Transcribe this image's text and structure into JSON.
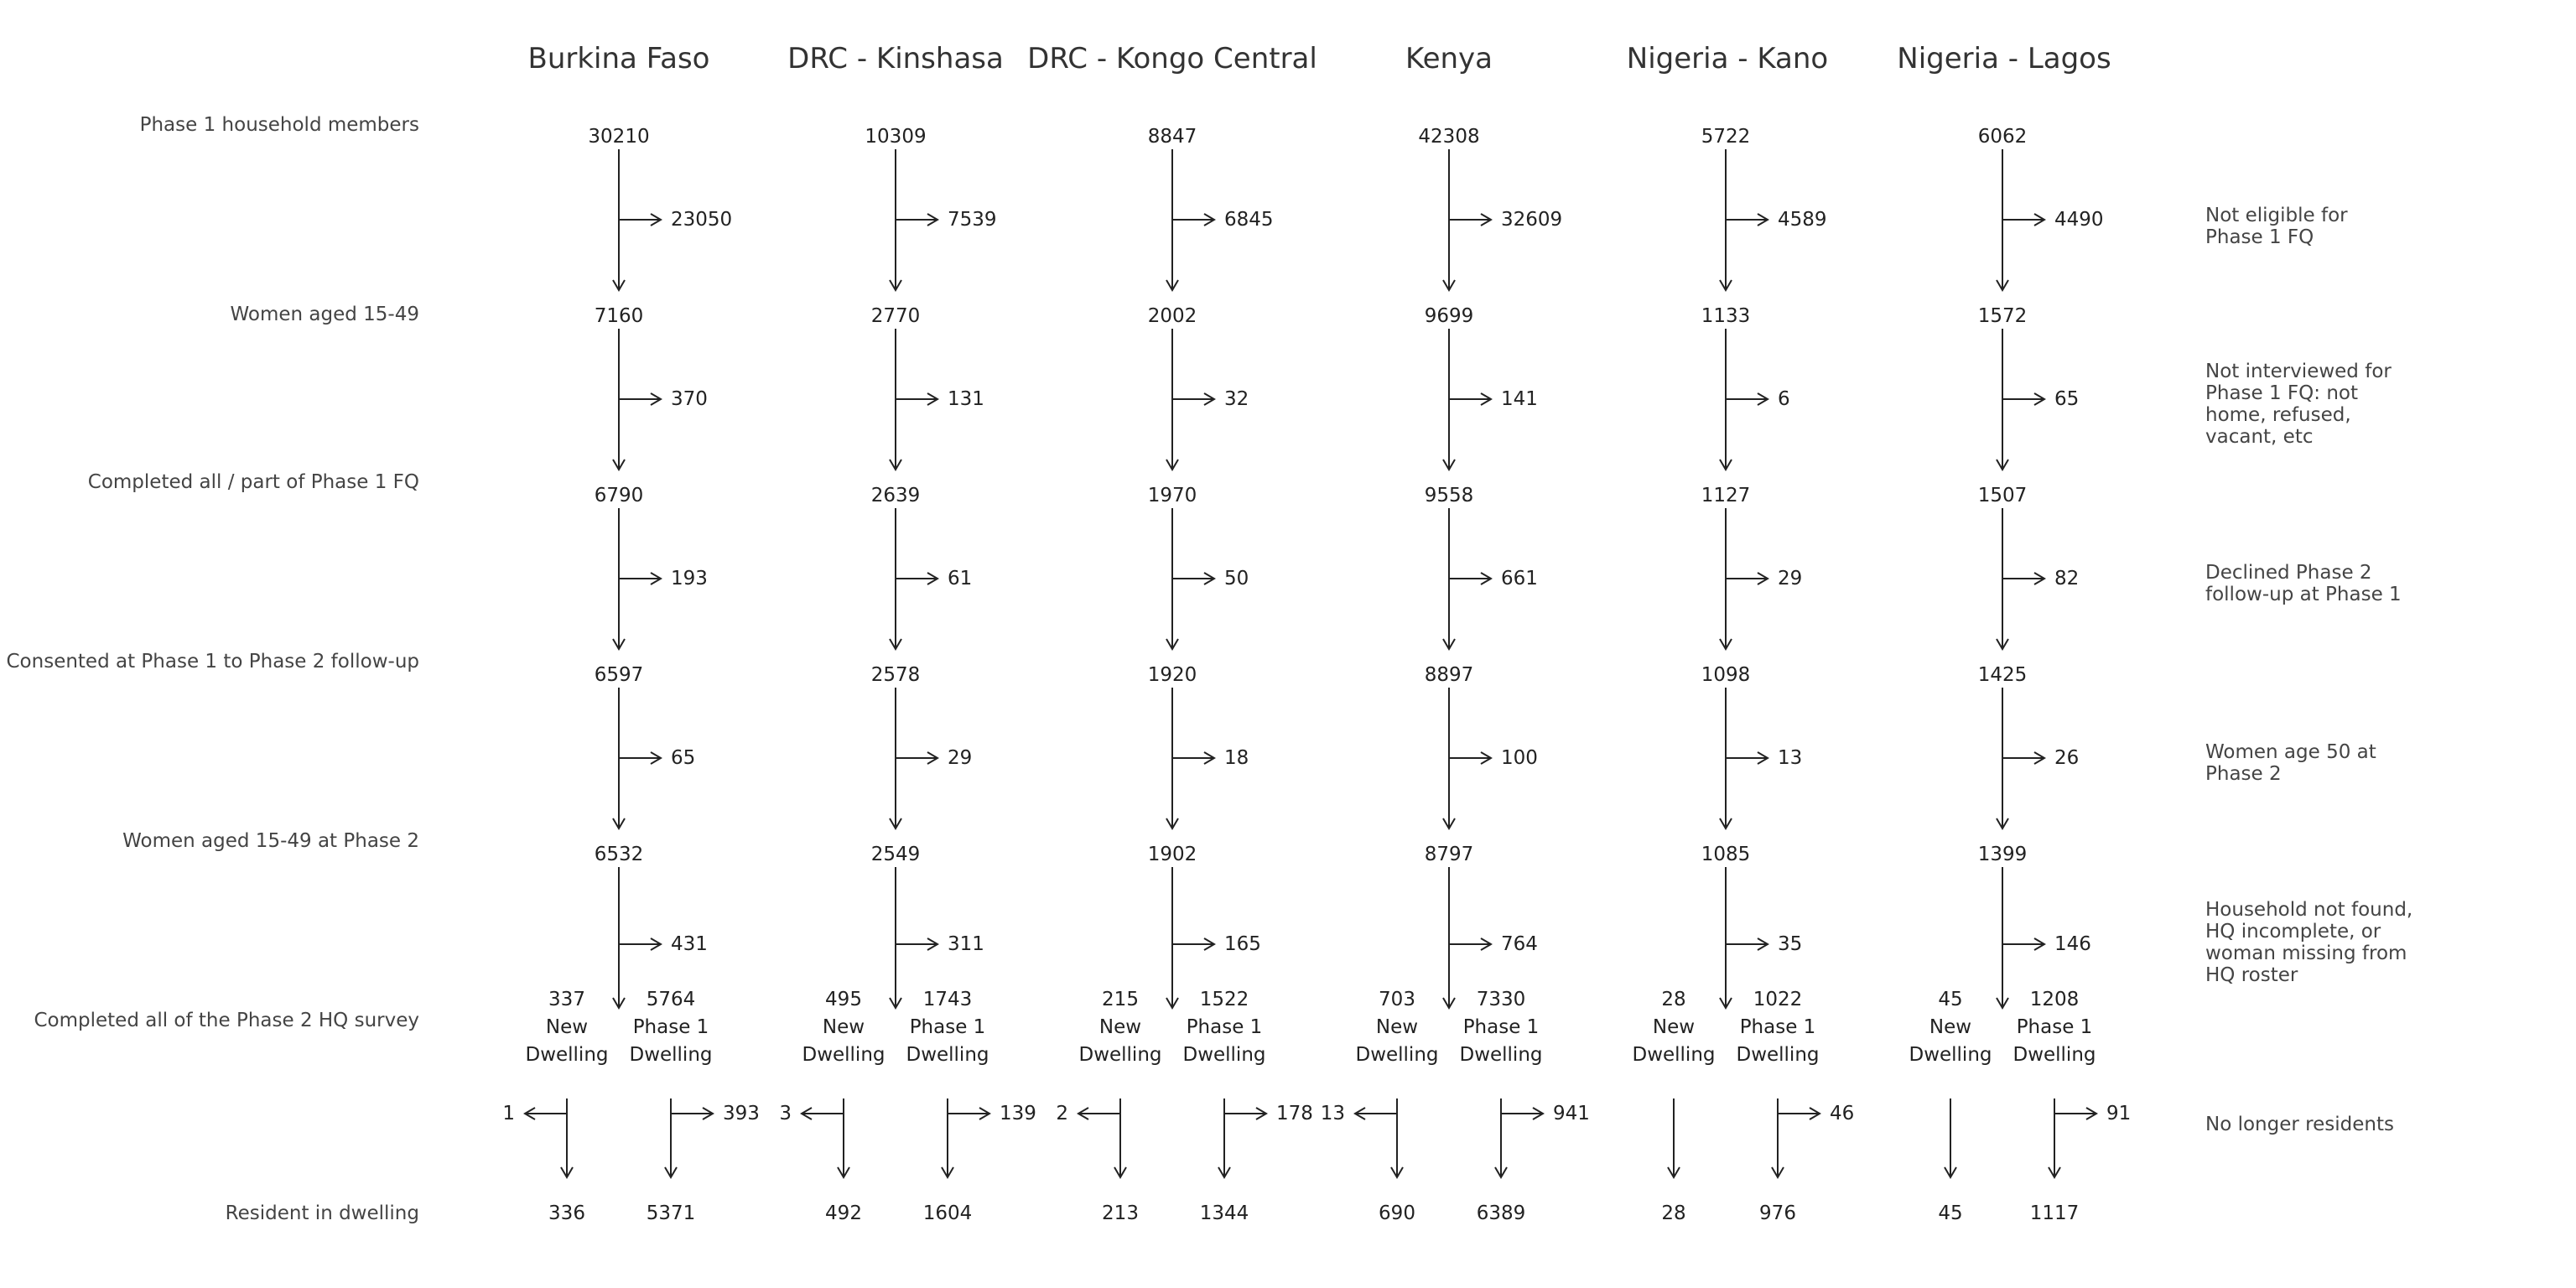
{
  "countries": [
    "Burkina Faso",
    "DRC - Kinshasa",
    "DRC - Kongo Central",
    "Kenya",
    "Nigeria - Kano",
    "Nigeria - Lagos"
  ],
  "stage_labels": [
    "Phase 1 household members",
    "Women aged 15-49",
    "Completed all / part of Phase 1 FQ",
    "Consented at Phase 1 to Phase 2 follow-up",
    "Women aged 15-49 at Phase 2",
    "Completed all of the Phase 2 HQ survey",
    "Resident in dwelling"
  ],
  "exit_labels": [
    "Not eligible for Phase 1 FQ",
    "Not interviewed for Phase 1 FQ: not home, refused, vacant, etc",
    "Declined Phase 2 follow-up at Phase 1",
    "Women age 50 at Phase 2",
    "Household not found, HQ incomplete, or woman missing from HQ roster",
    "No longer residents"
  ],
  "stage_values": [
    [
      "30210",
      "10309",
      "8847",
      "42308",
      "5722",
      "6062"
    ],
    [
      "7160",
      "2770",
      "2002",
      "9699",
      "1133",
      "1572"
    ],
    [
      "6790",
      "2639",
      "1970",
      "9558",
      "1127",
      "1507"
    ],
    [
      "6597",
      "2578",
      "1920",
      "8897",
      "1098",
      "1425"
    ],
    [
      "6532",
      "2549",
      "1902",
      "8797",
      "1085",
      "1399"
    ]
  ],
  "exit_values": [
    [
      "23050",
      "7539",
      "6845",
      "32609",
      "4589",
      "4490"
    ],
    [
      "370",
      "131",
      "32",
      "141",
      "6",
      "65"
    ],
    [
      "193",
      "61",
      "50",
      "661",
      "29",
      "82"
    ],
    [
      "65",
      "29",
      "18",
      "100",
      "13",
      "26"
    ],
    [
      "431",
      "311",
      "165",
      "764",
      "35",
      "146"
    ]
  ],
  "split_labels": {
    "new_line1": "New",
    "new_line2": "Dwelling",
    "p1_line1": "Phase 1",
    "p1_line2": "Dwelling"
  },
  "completed": {
    "new_dwelling": [
      "337",
      "495",
      "215",
      "703",
      "28",
      "45"
    ],
    "phase1_dwelling": [
      "5764",
      "1743",
      "1522",
      "7330",
      "1022",
      "1208"
    ]
  },
  "no_longer_residents": {
    "new_dwelling": [
      "1",
      "3",
      "2",
      "13",
      "",
      ""
    ],
    "phase1_dwelling": [
      "393",
      "139",
      "178",
      "941",
      "46",
      "91"
    ]
  },
  "resident": {
    "new_dwelling": [
      "336",
      "492",
      "213",
      "690",
      "28",
      "45"
    ],
    "phase1_dwelling": [
      "5371",
      "1604",
      "1344",
      "6389",
      "976",
      "1117"
    ]
  }
}
